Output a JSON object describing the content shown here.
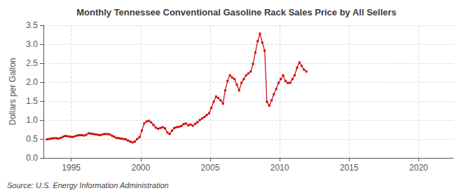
{
  "chart_data": {
    "type": "line",
    "title": "Monthly Tennessee Conventional Gasoline Rack Sales Price by All Sellers",
    "ylabel": "Dollars per Gallon",
    "source": "Source: U.S. Energy Information Administration",
    "color": "#CC0000",
    "marker": "square",
    "line_style": "solid",
    "grid": true,
    "xlim": [
      1993.0,
      2022.5
    ],
    "ylim": [
      0.0,
      3.5
    ],
    "xticks": [
      1995,
      2000,
      2005,
      2010,
      2015,
      2020
    ],
    "yticks": [
      {
        "value": 0.0,
        "label": "0.0"
      },
      0.5,
      {
        "value": 1.0,
        "label": "1.0"
      },
      1.5,
      {
        "value": 2.0,
        "label": "2.0"
      },
      2.5,
      {
        "value": 3.0,
        "label": "3.0"
      },
      3.5
    ],
    "x": [
      1993.25,
      1993.42,
      1993.58,
      1993.75,
      1993.92,
      1994.08,
      1994.25,
      1994.42,
      1994.58,
      1994.75,
      1994.92,
      1995.08,
      1995.25,
      1995.42,
      1995.58,
      1995.75,
      1995.92,
      1996.08,
      1996.25,
      1996.42,
      1996.58,
      1996.75,
      1996.92,
      1997.08,
      1997.25,
      1997.42,
      1997.58,
      1997.75,
      1997.92,
      1998.08,
      1998.25,
      1998.42,
      1998.58,
      1998.75,
      1998.92,
      1999.08,
      1999.25,
      1999.42,
      1999.58,
      1999.75,
      1999.92,
      2000.08,
      2000.25,
      2000.42,
      2000.58,
      2000.75,
      2000.92,
      2001.08,
      2001.25,
      2001.42,
      2001.58,
      2001.75,
      2001.92,
      2002.08,
      2002.25,
      2002.42,
      2002.58,
      2002.75,
      2002.92,
      2003.08,
      2003.25,
      2003.42,
      2003.58,
      2003.75,
      2003.92,
      2004.08,
      2004.25,
      2004.42,
      2004.58,
      2004.75,
      2004.92,
      2005.08,
      2005.25,
      2005.42,
      2005.58,
      2005.75,
      2005.92,
      2006.08,
      2006.25,
      2006.42,
      2006.58,
      2006.75,
      2006.92,
      2007.08,
      2007.25,
      2007.42,
      2007.58,
      2007.75,
      2007.92,
      2008.08,
      2008.25,
      2008.42,
      2008.58,
      2008.75,
      2008.92,
      2009.08,
      2009.25,
      2009.42,
      2009.58,
      2009.75,
      2009.92,
      2010.08,
      2010.25,
      2010.42,
      2010.58,
      2010.75,
      2010.92,
      2011.08,
      2011.25,
      2011.42,
      2011.58,
      2011.75,
      2011.92
    ],
    "values": [
      0.49,
      0.5,
      0.51,
      0.52,
      0.52,
      0.51,
      0.53,
      0.56,
      0.58,
      0.57,
      0.56,
      0.55,
      0.57,
      0.59,
      0.6,
      0.6,
      0.59,
      0.61,
      0.65,
      0.64,
      0.63,
      0.62,
      0.61,
      0.6,
      0.62,
      0.63,
      0.63,
      0.62,
      0.59,
      0.56,
      0.53,
      0.52,
      0.51,
      0.5,
      0.49,
      0.46,
      0.43,
      0.41,
      0.43,
      0.5,
      0.55,
      0.72,
      0.91,
      0.96,
      0.98,
      0.94,
      0.87,
      0.8,
      0.77,
      0.79,
      0.81,
      0.78,
      0.67,
      0.63,
      0.72,
      0.79,
      0.81,
      0.82,
      0.84,
      0.89,
      0.91,
      0.86,
      0.88,
      0.85,
      0.9,
      0.94,
      1.0,
      1.04,
      1.08,
      1.13,
      1.18,
      1.32,
      1.48,
      1.62,
      1.58,
      1.52,
      1.43,
      1.78,
      2.03,
      2.18,
      2.12,
      2.08,
      1.93,
      1.78,
      1.98,
      2.08,
      2.18,
      2.23,
      2.28,
      2.48,
      2.78,
      3.08,
      3.28,
      3.04,
      2.83,
      1.48,
      1.38,
      1.52,
      1.68,
      1.82,
      1.98,
      2.08,
      2.18,
      2.03,
      1.98,
      1.98,
      2.08,
      2.18,
      2.38,
      2.52,
      2.43,
      2.33,
      2.28
    ]
  }
}
